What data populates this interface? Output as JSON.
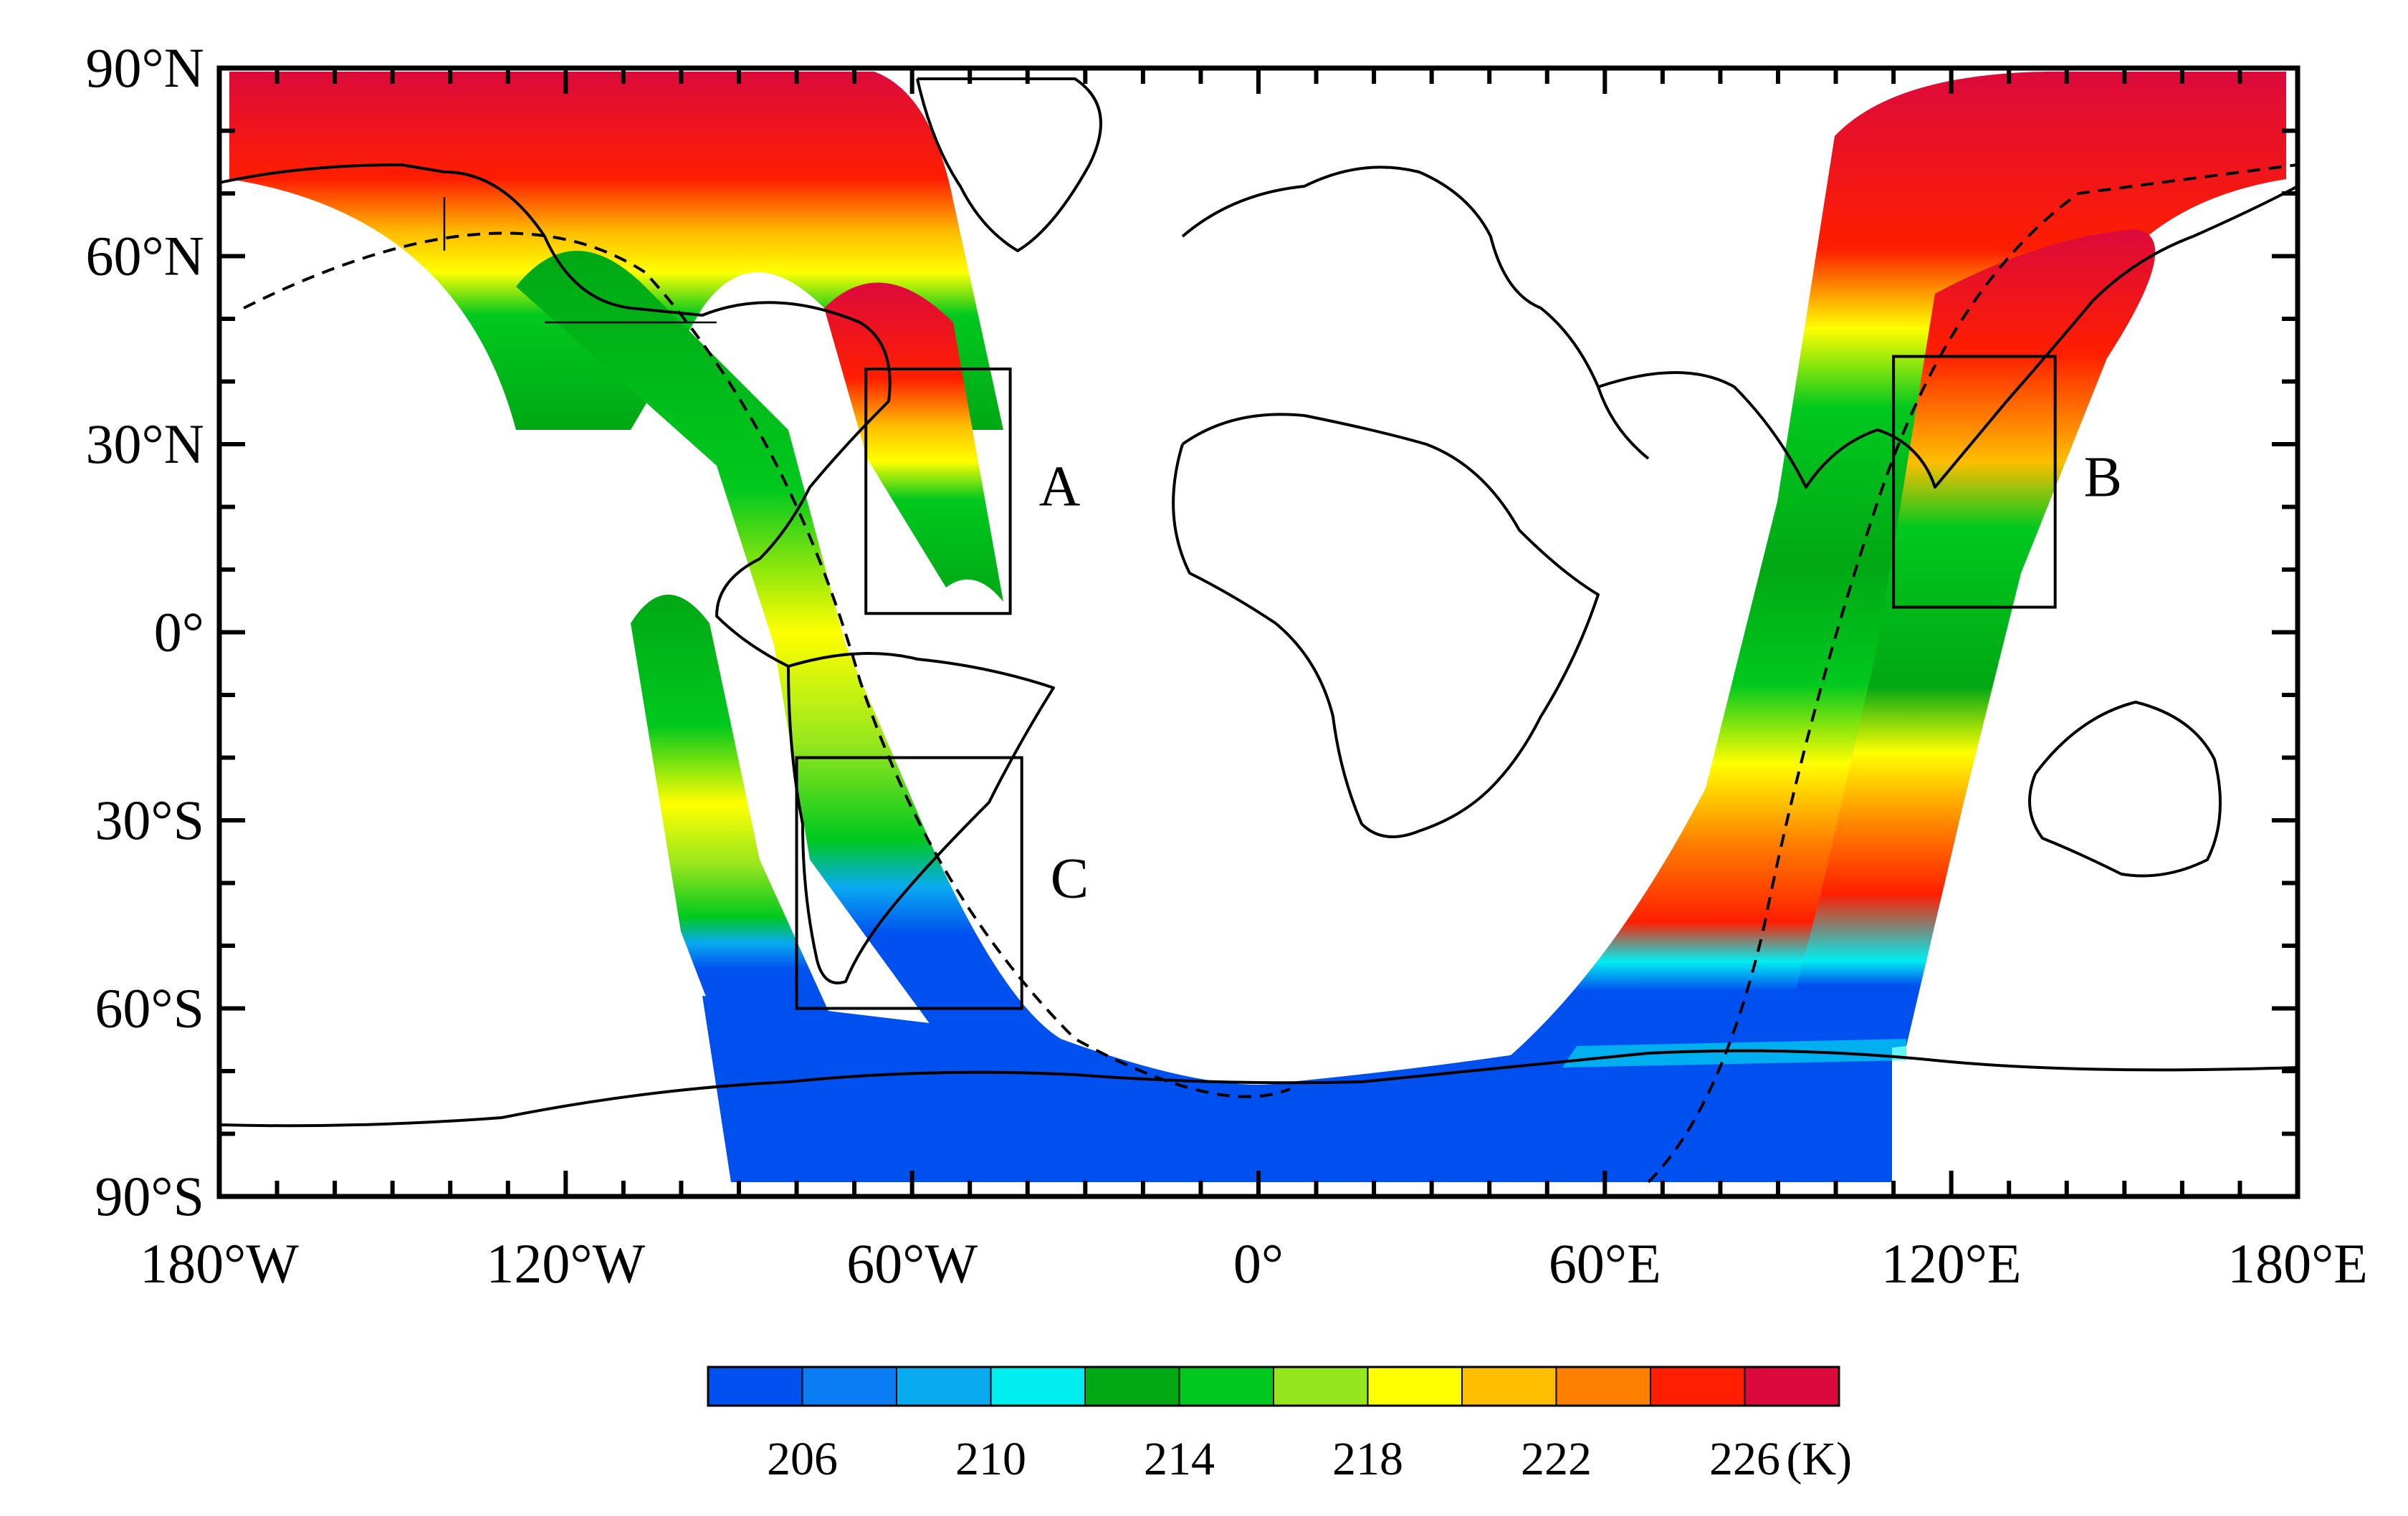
{
  "map": {
    "lat_labels": [
      "90°N",
      "60°N",
      "30°N",
      "0°",
      "30°S",
      "60°S",
      "90°S"
    ],
    "lon_labels": [
      "180°W",
      "120°W",
      "60°W",
      "0°",
      "60°E",
      "120°E",
      "180°E"
    ],
    "lat_values": [
      90,
      60,
      30,
      0,
      -30,
      -60,
      -90
    ],
    "lon_values": [
      -180,
      -120,
      -60,
      0,
      60,
      120,
      180
    ],
    "regions": [
      {
        "label": "A",
        "lon": [
          -68,
          -43
        ],
        "lat": [
          3,
          42
        ]
      },
      {
        "label": "B",
        "lon": [
          110,
          138
        ],
        "lat": [
          4,
          44
        ]
      },
      {
        "label": "C",
        "lon": [
          -80,
          -41
        ],
        "lat": [
          -60,
          -20
        ]
      }
    ],
    "colorbar": {
      "colors": [
        "#0050f0",
        "#0a7cf4",
        "#0aaaf0",
        "#00eef0",
        "#00a814",
        "#00c81e",
        "#96e61e",
        "#ffff00",
        "#ffbe00",
        "#ff7f00",
        "#ff1e00",
        "#dc0a3c"
      ],
      "tick_labels": [
        "206",
        "210",
        "214",
        "218",
        "222",
        "226"
      ],
      "unit": "(K)"
    }
  }
}
